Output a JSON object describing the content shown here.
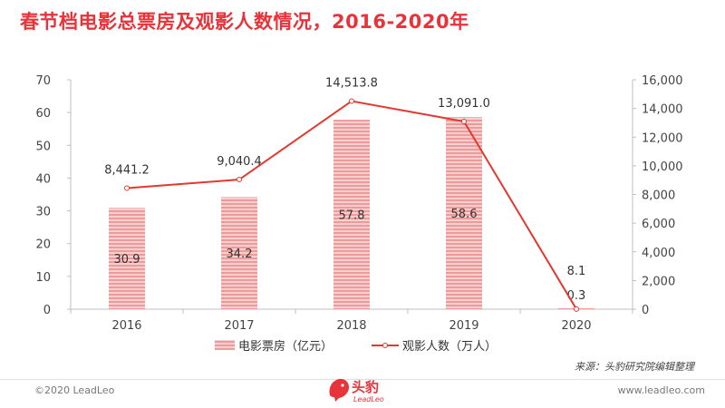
{
  "title": "春节档电影总票房及观影人数情况，2016-2020年",
  "source": "来源：头豹研究院编辑整理",
  "copyright": "©2020 LeadLeo",
  "website": "www.leadleo.com",
  "logo": {
    "text": "头豹",
    "sub": "LeadLeo"
  },
  "colors": {
    "accent": "#e8333a",
    "bar": "#f2a8a8",
    "line": "#e2382f"
  },
  "chart_data": {
    "type": "bar",
    "categories": [
      "2016",
      "2017",
      "2018",
      "2019",
      "2020"
    ],
    "series": [
      {
        "name": "电影票房（亿元）",
        "type": "bar",
        "axis": "left",
        "values": [
          30.9,
          34.2,
          57.8,
          58.6,
          0.3
        ],
        "labels": [
          "30.9",
          "34.2",
          "57.8",
          "58.6",
          "0.3"
        ]
      },
      {
        "name": "观影人数（万人）",
        "type": "line",
        "axis": "right",
        "values": [
          8441.2,
          9040.4,
          14513.8,
          13091.0,
          8.1
        ],
        "labels": [
          "8,441.2",
          "9,040.4",
          "14,513.8",
          "13,091.0",
          "8.1"
        ]
      }
    ],
    "ylim_left": [
      0,
      70
    ],
    "yticks_left": [
      "0",
      "10",
      "20",
      "30",
      "40",
      "50",
      "60",
      "70"
    ],
    "ylim_right": [
      0,
      16000
    ],
    "yticks_right": [
      "0",
      "2,000",
      "4,000",
      "6,000",
      "8,000",
      "10,000",
      "12,000",
      "14,000",
      "16,000"
    ],
    "grid": false,
    "legend_position": "bottom"
  }
}
